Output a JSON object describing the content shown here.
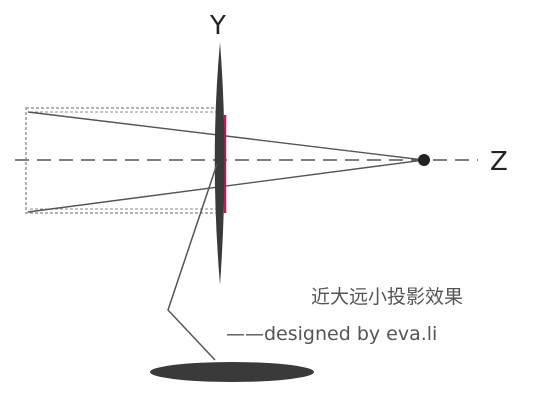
{
  "labels": {
    "y_axis": "Y",
    "z_axis": "Z"
  },
  "caption": {
    "title": "近大远小投影效果",
    "credit": "——designed by eva.li"
  },
  "colors": {
    "stroke": "#555555",
    "dashed": "#888888",
    "dark": "#3a3a3a",
    "projection_accent": "#c2185b"
  }
}
